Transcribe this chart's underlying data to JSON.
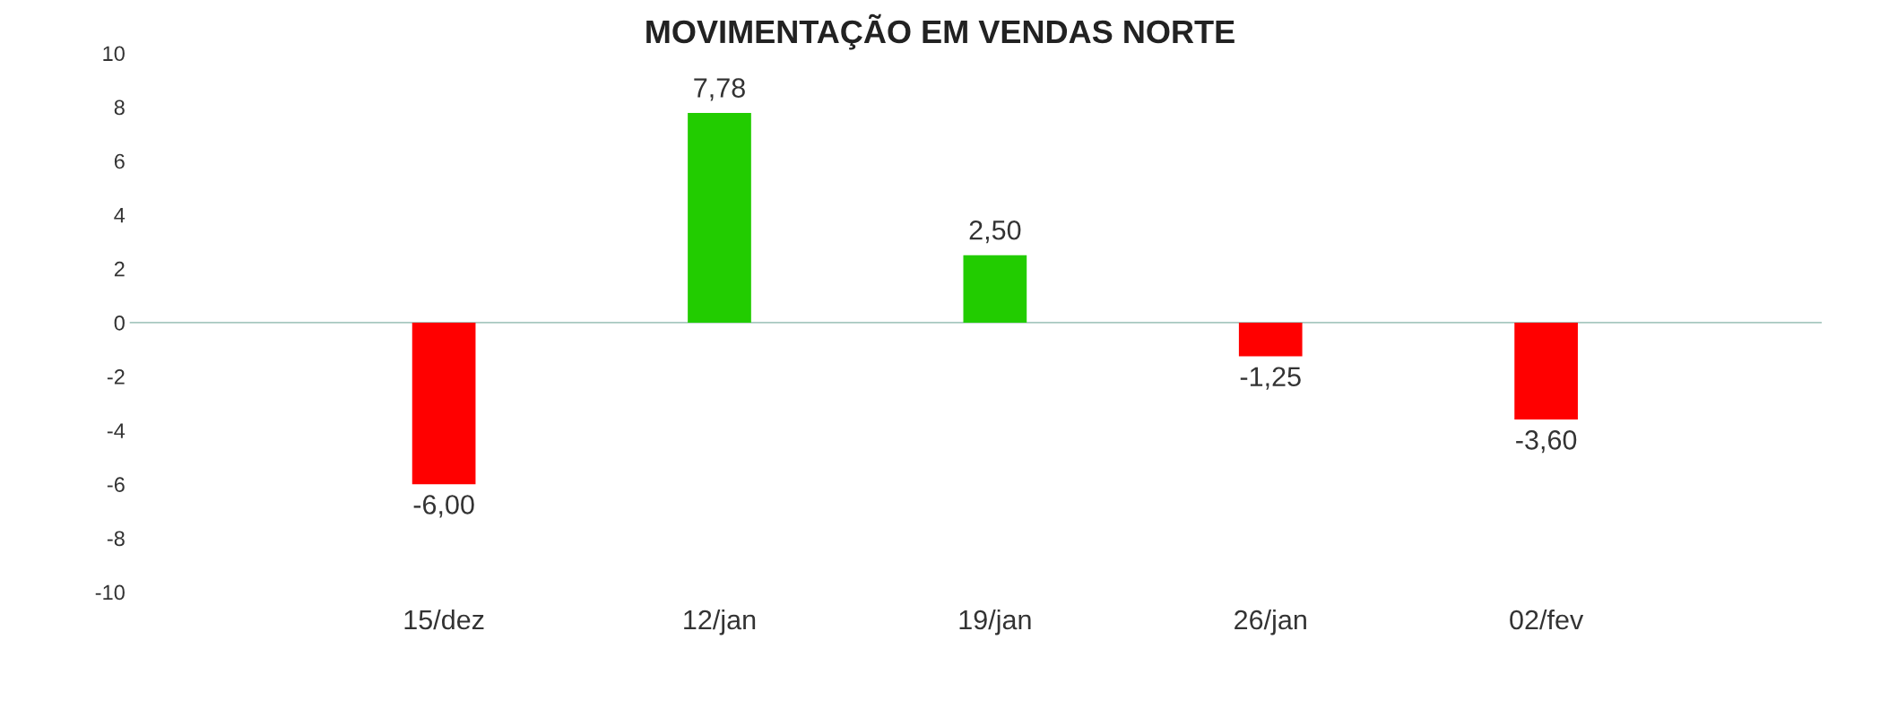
{
  "chart_data": {
    "type": "bar",
    "title": "MOVIMENTAÇÃO EM VENDAS NORTE",
    "categories": [
      "15/dez",
      "12/jan",
      "19/jan",
      "26/jan",
      "02/fev"
    ],
    "values": [
      -6.0,
      7.78,
      2.5,
      -1.25,
      -3.6
    ],
    "colors": [
      "#ff0000",
      "#22cc00",
      "#22cc00",
      "#ff0000",
      "#ff0000"
    ],
    "value_labels": [
      "-6,00",
      "7,78",
      "2,50",
      "-1,25",
      "-3,60"
    ],
    "ylim": [
      -10,
      10
    ],
    "yticks": [
      -10,
      -8,
      -6,
      -4,
      -2,
      0,
      2,
      4,
      6,
      8,
      10
    ],
    "ref_lines": [
      {
        "axis": "y",
        "value": 0,
        "color": "#a8c8c0"
      }
    ]
  }
}
